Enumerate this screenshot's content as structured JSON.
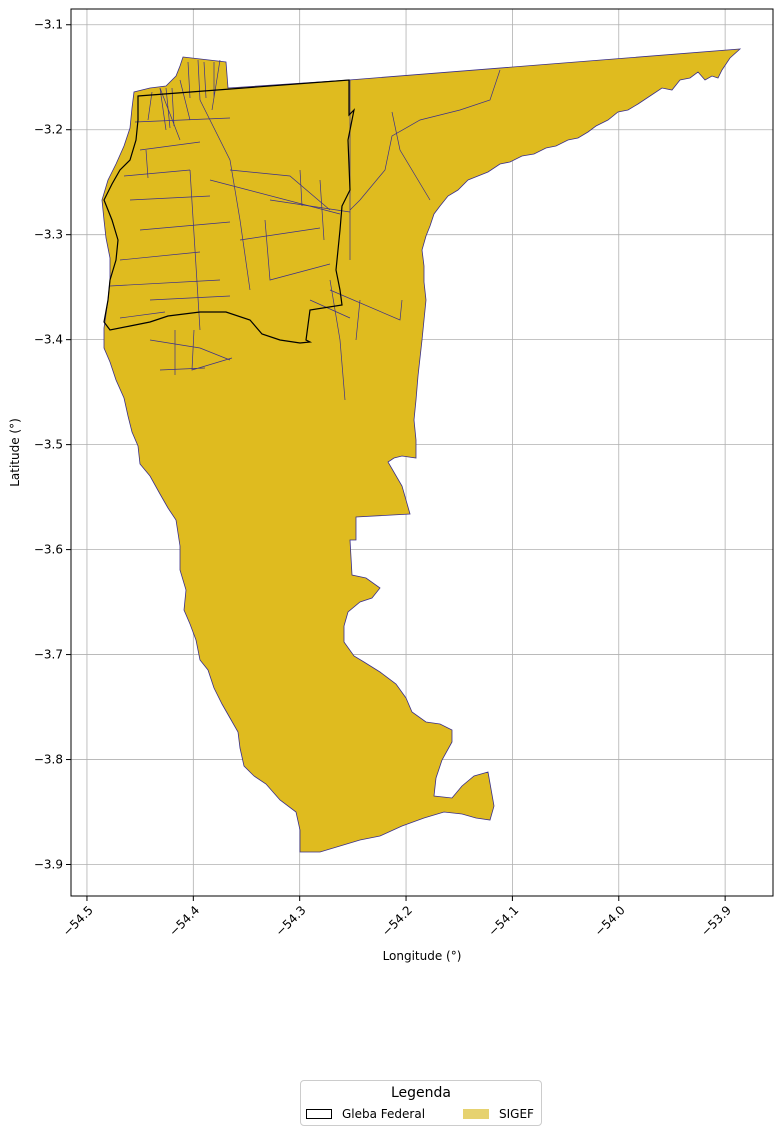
{
  "map": {
    "xlabel": "Longitude (°)",
    "ylabel": "Latitude (°)",
    "xlim": [
      -54.515,
      -53.855
    ],
    "ylim": [
      -3.93,
      -3.085
    ],
    "xticks": [
      -54.5,
      -54.4,
      -54.3,
      -54.2,
      -54.1,
      -54.0,
      -53.9
    ],
    "yticks": [
      -3.1,
      -3.2,
      -3.3,
      -3.4,
      -3.5,
      -3.6,
      -3.7,
      -3.8,
      -3.9
    ],
    "xtick_labels": [
      "−54.5",
      "−54.4",
      "−54.3",
      "−54.2",
      "−54.1",
      "−54.0",
      "−53.9"
    ],
    "ytick_labels": [
      "−3.1",
      "−3.2",
      "−3.3",
      "−3.4",
      "−3.5",
      "−3.6",
      "−3.7",
      "−3.8",
      "−3.9"
    ],
    "grid": true
  },
  "layers": {
    "sigef": {
      "name": "SIGEF",
      "fill": "#dfbb1f",
      "edge": "#3a2f8a",
      "legend_color": "#e6d270"
    },
    "gleba": {
      "name": "Gleba Federal",
      "edge": "#000000"
    }
  },
  "legend": {
    "title": "Legenda",
    "items": [
      "Gleba Federal",
      "SIGEF"
    ]
  }
}
